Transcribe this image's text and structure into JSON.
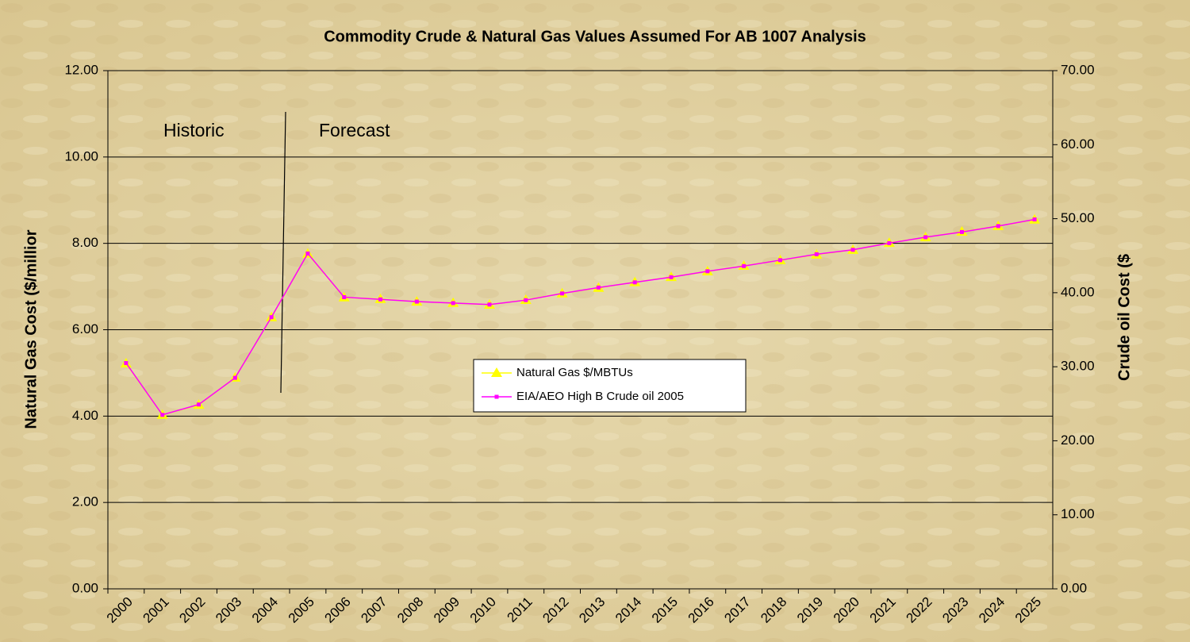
{
  "chart_data": {
    "type": "line",
    "title": "Commodity Crude & Natural Gas Values Assumed For AB 1007 Analysis",
    "y_label": "Natural Gas Cost ($/millior",
    "y2_label": "Crude oil Cost ($",
    "annotations": [
      "Historic",
      "Forecast"
    ],
    "categories": [
      "2000",
      "2001",
      "2002",
      "2003",
      "2004",
      "2005",
      "2006",
      "2007",
      "2008",
      "2009",
      "2010",
      "2011",
      "2012",
      "2013",
      "2014",
      "2015",
      "2016",
      "2017",
      "2018",
      "2019",
      "2020",
      "2021",
      "2022",
      "2023",
      "2024",
      "2025"
    ],
    "series": [
      {
        "name": "Natural Gas $/MBTUs",
        "color": "#ffff00",
        "marker": "triangle",
        "values": [
          5.22,
          4.03,
          4.26,
          4.89,
          6.29,
          7.76,
          6.75,
          6.71,
          6.65,
          6.62,
          6.58,
          6.69,
          6.84,
          6.97,
          7.1,
          7.22,
          7.35,
          7.48,
          7.61,
          7.74,
          7.85,
          8.01,
          8.14,
          8.27,
          8.4,
          8.55
        ]
      },
      {
        "name": "EIA/AEO High B Crude oil 2005",
        "color": "#ff00ff",
        "marker": "square",
        "axis": "y2",
        "values": [
          30.5,
          23.5,
          24.9,
          28.5,
          36.7,
          45.3,
          39.4,
          39.1,
          38.8,
          38.6,
          38.4,
          39.0,
          39.9,
          40.7,
          41.4,
          42.1,
          42.9,
          43.6,
          44.4,
          45.2,
          45.8,
          46.7,
          47.5,
          48.2,
          49.0,
          49.9
        ]
      }
    ],
    "ylim": [
      0,
      12
    ],
    "yticks": [
      {
        "value": 0,
        "label": "0.00"
      },
      {
        "value": 2,
        "label": "2.00"
      },
      {
        "value": 4,
        "label": "4.00"
      },
      {
        "value": 6,
        "label": "6.00"
      },
      {
        "value": 8,
        "label": "8.00"
      },
      {
        "value": 10,
        "label": "10.00"
      },
      {
        "value": 12,
        "label": "12.00"
      }
    ],
    "y2lim": [
      0,
      70
    ],
    "y2ticks": [
      {
        "value": 0,
        "label": "0.00"
      },
      {
        "value": 10,
        "label": "10.00"
      },
      {
        "value": 20,
        "label": "20.00"
      },
      {
        "value": 30,
        "label": "30.00"
      },
      {
        "value": 40,
        "label": "40.00"
      },
      {
        "value": 50,
        "label": "50.00"
      },
      {
        "value": 60,
        "label": "60.00"
      },
      {
        "value": 70,
        "label": "70.00"
      }
    ],
    "grid": true
  }
}
